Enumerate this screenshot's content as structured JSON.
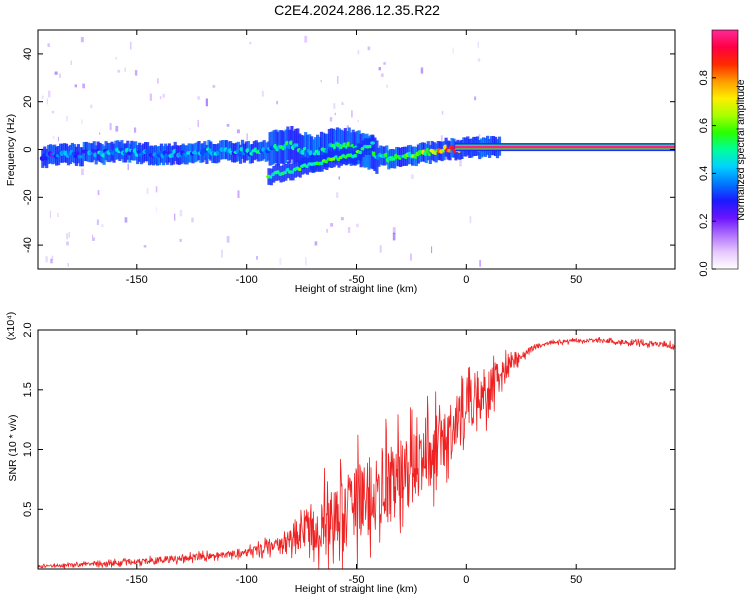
{
  "title": "C2E4.2024.286.12.35.R22",
  "colors": {
    "line": "#ee2222",
    "colormap": [
      "#ffffff",
      "#e6c8ff",
      "#b070ff",
      "#6a14ff",
      "#1a1aff",
      "#0078ff",
      "#00d2ff",
      "#00ff9a",
      "#28ff00",
      "#aaff00",
      "#ffee00",
      "#ff9a00",
      "#ff2a00",
      "#ff0044",
      "#ff2a9a"
    ]
  },
  "chart_data": [
    {
      "type": "heatmap",
      "xlabel": "Height of straight line (km)",
      "ylabel": "Frequency (Hz)",
      "xlim": [
        -195,
        95
      ],
      "ylim": [
        -50,
        50
      ],
      "xticks": [
        -150,
        -100,
        -50,
        0,
        50
      ],
      "xtick_labels": [
        "-150",
        "-100",
        "-50",
        "0",
        "50"
      ],
      "yticks": [
        40,
        20,
        0,
        -20,
        -40
      ],
      "ytick_labels": [
        "40",
        "20",
        "0",
        "-20",
        "-40"
      ],
      "colorbar": {
        "label": "Normalized spectral amplitude",
        "range": [
          0,
          1
        ],
        "ticks": [
          0.0,
          0.2,
          0.4,
          0.6,
          0.8
        ],
        "tick_labels": [
          "0.0",
          "0.2",
          "0.4",
          "0.6",
          "0.8"
        ]
      },
      "ridge": {
        "x": [
          -195,
          -175,
          -160,
          -140,
          -120,
          -100,
          -90,
          -80,
          -70,
          -60,
          -50,
          -40,
          -30,
          -20,
          -10,
          0,
          15,
          50,
          95
        ],
        "y": [
          -3,
          -2,
          -1,
          -2,
          -1,
          -1,
          0,
          2,
          -2,
          2,
          1,
          -3,
          -4,
          -2,
          0,
          1,
          1,
          1,
          1
        ],
        "amplitude": [
          0.25,
          0.35,
          0.4,
          0.35,
          0.38,
          0.4,
          0.42,
          0.45,
          0.4,
          0.45,
          0.5,
          0.45,
          0.5,
          0.6,
          0.75,
          0.9,
          0.95,
          0.97,
          0.98
        ]
      },
      "secondary_ridge": {
        "x": [
          -90,
          -80,
          -70,
          -60,
          -50,
          -42
        ],
        "y": [
          -11,
          -9,
          -6,
          -4,
          -2,
          3
        ]
      },
      "continuous_tone": {
        "x_start": -5,
        "x_end": 95,
        "y": 1,
        "amplitude": 0.98
      }
    },
    {
      "type": "line",
      "xlabel": "Height of straight line (km)",
      "ylabel": "SNR (10 * v/v)",
      "y_multiplier": "(x10⁴)",
      "xlim": [
        -195,
        95
      ],
      "ylim": [
        0,
        2.0
      ],
      "xticks": [
        -150,
        -100,
        -50,
        0,
        50
      ],
      "xtick_labels": [
        "-150",
        "-100",
        "-50",
        "0",
        "50"
      ],
      "yticks": [
        0.5,
        1.0,
        1.5,
        2.0
      ],
      "ytick_labels": [
        "0.5",
        "1.0",
        "1.5",
        "2.0"
      ],
      "series": [
        {
          "x": [
            -195,
            -170,
            -150,
            -130,
            -110,
            -100,
            -90,
            -80,
            -75,
            -70,
            -65,
            -60,
            -55,
            -50,
            -45,
            -40,
            -35,
            -30,
            -25,
            -20,
            -15,
            -10,
            -5,
            0,
            5,
            10,
            15,
            20,
            25,
            30,
            35,
            40,
            50,
            60,
            70,
            80,
            90,
            95
          ],
          "y": [
            0.02,
            0.04,
            0.06,
            0.09,
            0.12,
            0.14,
            0.18,
            0.22,
            0.3,
            0.35,
            0.4,
            0.45,
            0.5,
            0.55,
            0.6,
            0.65,
            0.7,
            0.75,
            0.82,
            0.9,
            1.0,
            1.1,
            1.2,
            1.35,
            1.45,
            1.5,
            1.6,
            1.7,
            1.78,
            1.85,
            1.88,
            1.9,
            1.91,
            1.91,
            1.9,
            1.89,
            1.88,
            1.86
          ],
          "noise": [
            0.02,
            0.03,
            0.04,
            0.05,
            0.05,
            0.06,
            0.1,
            0.2,
            0.3,
            0.4,
            0.45,
            0.5,
            0.55,
            0.6,
            0.6,
            0.6,
            0.6,
            0.55,
            0.55,
            0.55,
            0.5,
            0.45,
            0.45,
            0.4,
            0.4,
            0.35,
            0.25,
            0.12,
            0.06,
            0.04,
            0.03,
            0.03,
            0.03,
            0.03,
            0.03,
            0.04,
            0.04,
            0.04
          ]
        }
      ]
    }
  ]
}
